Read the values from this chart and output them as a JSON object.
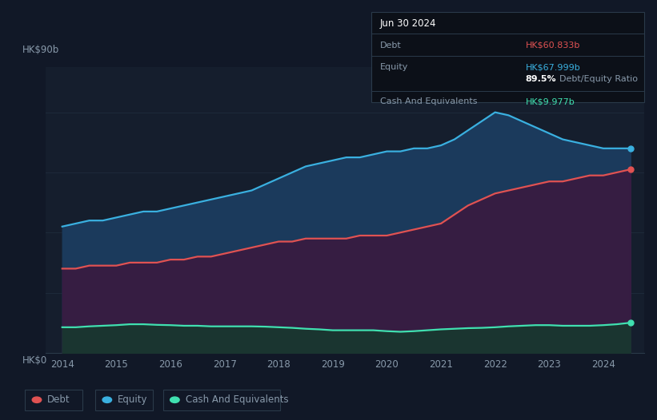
{
  "background_color": "#111827",
  "plot_bg_color": "#151e2d",
  "ylabel_top": "HK$90b",
  "ylabel_bottom": "HK$0",
  "x_ticks": [
    2014,
    2015,
    2016,
    2017,
    2018,
    2019,
    2020,
    2021,
    2022,
    2023,
    2024
  ],
  "legend_items": [
    "Debt",
    "Equity",
    "Cash And Equivalents"
  ],
  "legend_colors": [
    "#e05252",
    "#3ab0e0",
    "#40e0b0"
  ],
  "tooltip_date": "Jun 30 2024",
  "tooltip_debt_label": "Debt",
  "tooltip_debt_value": "HK$60.833b",
  "tooltip_debt_color": "#e05252",
  "tooltip_equity_label": "Equity",
  "tooltip_equity_value": "HK$67.999b",
  "tooltip_equity_color": "#3ab0e0",
  "tooltip_ratio": "89.5%",
  "tooltip_ratio_label": "Debt/Equity Ratio",
  "tooltip_cash_label": "Cash And Equivalents",
  "tooltip_cash_value": "HK$9.977b",
  "tooltip_cash_color": "#40e0b0",
  "equity_line_color": "#3ab0e0",
  "equity_fill_color": "#1b3a5c",
  "debt_line_color": "#e05252",
  "debt_fill_color": "#3a1a40",
  "cash_line_color": "#40e0b0",
  "cash_fill_color": "#1a3530",
  "grid_color": "#1e2a3a",
  "axis_color": "#2a3a4a",
  "text_color": "#8899aa",
  "tick_color": "#8899aa",
  "years": [
    2014.0,
    2014.25,
    2014.5,
    2014.75,
    2015.0,
    2015.25,
    2015.5,
    2015.75,
    2016.0,
    2016.25,
    2016.5,
    2016.75,
    2017.0,
    2017.25,
    2017.5,
    2017.75,
    2018.0,
    2018.25,
    2018.5,
    2018.75,
    2019.0,
    2019.25,
    2019.5,
    2019.75,
    2020.0,
    2020.25,
    2020.5,
    2020.75,
    2021.0,
    2021.25,
    2021.5,
    2021.75,
    2022.0,
    2022.25,
    2022.5,
    2022.75,
    2023.0,
    2023.25,
    2023.5,
    2023.75,
    2024.0,
    2024.25,
    2024.5
  ],
  "equity": [
    42,
    43,
    44,
    44,
    45,
    46,
    47,
    47,
    48,
    49,
    50,
    51,
    52,
    53,
    54,
    56,
    58,
    60,
    62,
    63,
    64,
    65,
    65,
    66,
    67,
    67,
    68,
    68,
    69,
    71,
    74,
    77,
    80,
    79,
    77,
    75,
    73,
    71,
    70,
    69,
    68,
    68,
    68
  ],
  "debt": [
    28,
    28,
    29,
    29,
    29,
    30,
    30,
    30,
    31,
    31,
    32,
    32,
    33,
    34,
    35,
    36,
    37,
    37,
    38,
    38,
    38,
    38,
    39,
    39,
    39,
    40,
    41,
    42,
    43,
    46,
    49,
    51,
    53,
    54,
    55,
    56,
    57,
    57,
    58,
    59,
    59,
    60,
    61
  ],
  "cash": [
    8.5,
    8.5,
    8.8,
    9.0,
    9.2,
    9.5,
    9.5,
    9.3,
    9.2,
    9.0,
    9.0,
    8.8,
    8.8,
    8.8,
    8.8,
    8.7,
    8.5,
    8.3,
    8.0,
    7.8,
    7.5,
    7.5,
    7.5,
    7.5,
    7.2,
    7.0,
    7.2,
    7.5,
    7.8,
    8.0,
    8.2,
    8.3,
    8.5,
    8.8,
    9.0,
    9.2,
    9.2,
    9.0,
    9.0,
    9.0,
    9.2,
    9.5,
    10.0
  ],
  "ylim": [
    0,
    95
  ],
  "xlim_left": 2013.7,
  "xlim_right": 2024.75
}
